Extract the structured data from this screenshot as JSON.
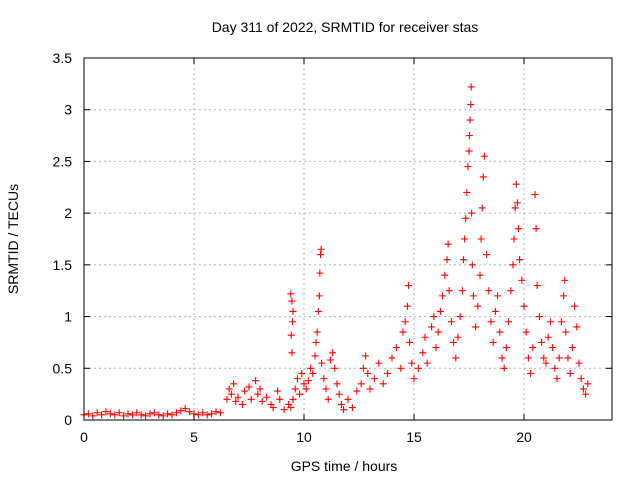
{
  "chart_data": {
    "type": "scatter",
    "title": "Day 311 of 2022, SRMTID for receiver stas",
    "xlabel": "GPS time / hours",
    "ylabel": "SRMTID / TECUs",
    "xlim": [
      0,
      24
    ],
    "ylim": [
      0,
      3.5
    ],
    "x_ticks": [
      0,
      5,
      10,
      15,
      20
    ],
    "x_tick_labels": [
      "0",
      "5",
      "10",
      "15",
      "20"
    ],
    "y_ticks": [
      0,
      0.5,
      1,
      1.5,
      2,
      2.5,
      3,
      3.5
    ],
    "y_tick_labels": [
      "0",
      "0.5",
      "1",
      "1.5",
      "2",
      "2.5",
      "3",
      "3.5"
    ],
    "grid": true,
    "marker": "+",
    "marker_color": "#ff0000",
    "series": [
      {
        "name": "stas",
        "points": [
          [
            0.0,
            0.05
          ],
          [
            0.2,
            0.06
          ],
          [
            0.4,
            0.04
          ],
          [
            0.6,
            0.07
          ],
          [
            0.8,
            0.05
          ],
          [
            1.0,
            0.08
          ],
          [
            1.2,
            0.06
          ],
          [
            1.4,
            0.05
          ],
          [
            1.6,
            0.07
          ],
          [
            1.8,
            0.04
          ],
          [
            2.0,
            0.06
          ],
          [
            2.2,
            0.05
          ],
          [
            2.4,
            0.07
          ],
          [
            2.6,
            0.05
          ],
          [
            2.8,
            0.04
          ],
          [
            3.0,
            0.06
          ],
          [
            3.2,
            0.07
          ],
          [
            3.4,
            0.05
          ],
          [
            3.6,
            0.04
          ],
          [
            3.8,
            0.06
          ],
          [
            4.0,
            0.05
          ],
          [
            4.2,
            0.07
          ],
          [
            4.4,
            0.09
          ],
          [
            4.6,
            0.11
          ],
          [
            4.8,
            0.08
          ],
          [
            5.0,
            0.06
          ],
          [
            5.2,
            0.05
          ],
          [
            5.4,
            0.07
          ],
          [
            5.6,
            0.05
          ],
          [
            5.8,
            0.06
          ],
          [
            6.0,
            0.08
          ],
          [
            6.2,
            0.07
          ],
          [
            6.5,
            0.2
          ],
          [
            6.6,
            0.3
          ],
          [
            6.7,
            0.25
          ],
          [
            6.8,
            0.35
          ],
          [
            6.9,
            0.18
          ],
          [
            7.0,
            0.22
          ],
          [
            7.2,
            0.15
          ],
          [
            7.3,
            0.28
          ],
          [
            7.5,
            0.32
          ],
          [
            7.6,
            0.2
          ],
          [
            7.8,
            0.38
          ],
          [
            7.9,
            0.25
          ],
          [
            8.0,
            0.3
          ],
          [
            8.1,
            0.18
          ],
          [
            8.3,
            0.22
          ],
          [
            8.5,
            0.15
          ],
          [
            8.6,
            0.12
          ],
          [
            8.8,
            0.28
          ],
          [
            8.9,
            0.2
          ],
          [
            9.1,
            0.1
          ],
          [
            9.3,
            0.15
          ],
          [
            9.4,
            0.12
          ],
          [
            9.5,
            0.2
          ],
          [
            9.4,
            1.22
          ],
          [
            9.45,
            1.15
          ],
          [
            9.5,
            1.05
          ],
          [
            9.48,
            0.95
          ],
          [
            9.42,
            0.82
          ],
          [
            9.45,
            0.65
          ],
          [
            9.6,
            0.3
          ],
          [
            9.7,
            0.4
          ],
          [
            9.8,
            0.25
          ],
          [
            9.9,
            0.45
          ],
          [
            10.0,
            0.35
          ],
          [
            10.1,
            0.3
          ],
          [
            10.2,
            0.38
          ],
          [
            10.3,
            0.5
          ],
          [
            10.4,
            0.45
          ],
          [
            10.5,
            0.62
          ],
          [
            10.55,
            0.75
          ],
          [
            10.6,
            0.85
          ],
          [
            10.65,
            1.05
          ],
          [
            10.7,
            1.2
          ],
          [
            10.72,
            1.42
          ],
          [
            10.75,
            1.6
          ],
          [
            10.78,
            1.65
          ],
          [
            10.8,
            0.55
          ],
          [
            10.9,
            0.4
          ],
          [
            11.0,
            0.3
          ],
          [
            11.1,
            0.2
          ],
          [
            11.2,
            0.58
          ],
          [
            11.3,
            0.65
          ],
          [
            11.4,
            0.5
          ],
          [
            11.5,
            0.35
          ],
          [
            11.6,
            0.25
          ],
          [
            11.7,
            0.15
          ],
          [
            11.8,
            0.1
          ],
          [
            12.0,
            0.2
          ],
          [
            12.2,
            0.12
          ],
          [
            12.4,
            0.28
          ],
          [
            12.6,
            0.35
          ],
          [
            12.7,
            0.5
          ],
          [
            12.8,
            0.62
          ],
          [
            12.9,
            0.45
          ],
          [
            13.0,
            0.3
          ],
          [
            13.2,
            0.4
          ],
          [
            13.4,
            0.55
          ],
          [
            13.6,
            0.35
          ],
          [
            13.8,
            0.45
          ],
          [
            14.0,
            0.6
          ],
          [
            14.2,
            0.7
          ],
          [
            14.4,
            0.5
          ],
          [
            14.5,
            0.85
          ],
          [
            14.6,
            0.95
          ],
          [
            14.7,
            1.1
          ],
          [
            14.75,
            1.3
          ],
          [
            14.8,
            0.75
          ],
          [
            14.9,
            0.55
          ],
          [
            15.0,
            0.4
          ],
          [
            15.2,
            0.5
          ],
          [
            15.4,
            0.65
          ],
          [
            15.5,
            0.8
          ],
          [
            15.6,
            0.55
          ],
          [
            15.8,
            0.9
          ],
          [
            15.9,
            1.0
          ],
          [
            16.0,
            0.7
          ],
          [
            16.1,
            0.85
          ],
          [
            16.2,
            1.05
          ],
          [
            16.3,
            1.2
          ],
          [
            16.4,
            1.4
          ],
          [
            16.5,
            1.55
          ],
          [
            16.55,
            1.7
          ],
          [
            16.6,
            1.25
          ],
          [
            16.7,
            0.95
          ],
          [
            16.8,
            0.75
          ],
          [
            16.9,
            0.6
          ],
          [
            17.0,
            0.8
          ],
          [
            17.1,
            1.0
          ],
          [
            17.2,
            1.25
          ],
          [
            17.25,
            1.55
          ],
          [
            17.3,
            1.75
          ],
          [
            17.35,
            1.95
          ],
          [
            17.4,
            2.2
          ],
          [
            17.45,
            2.45
          ],
          [
            17.5,
            2.6
          ],
          [
            17.52,
            2.75
          ],
          [
            17.55,
            2.9
          ],
          [
            17.58,
            3.05
          ],
          [
            17.6,
            3.22
          ],
          [
            17.62,
            2.0
          ],
          [
            17.65,
            1.5
          ],
          [
            17.7,
            1.2
          ],
          [
            17.8,
            0.9
          ],
          [
            17.9,
            1.1
          ],
          [
            18.0,
            1.4
          ],
          [
            18.05,
            1.75
          ],
          [
            18.1,
            2.05
          ],
          [
            18.15,
            2.35
          ],
          [
            18.2,
            2.55
          ],
          [
            18.3,
            1.6
          ],
          [
            18.4,
            1.25
          ],
          [
            18.5,
            0.95
          ],
          [
            18.6,
            0.75
          ],
          [
            18.7,
            1.05
          ],
          [
            18.8,
            1.2
          ],
          [
            18.9,
            0.85
          ],
          [
            19.0,
            0.6
          ],
          [
            19.1,
            0.5
          ],
          [
            19.2,
            0.7
          ],
          [
            19.3,
            0.95
          ],
          [
            19.4,
            1.25
          ],
          [
            19.5,
            1.5
          ],
          [
            19.55,
            1.75
          ],
          [
            19.6,
            2.05
          ],
          [
            19.65,
            2.28
          ],
          [
            19.7,
            2.1
          ],
          [
            19.75,
            1.85
          ],
          [
            19.8,
            1.55
          ],
          [
            19.9,
            1.35
          ],
          [
            20.0,
            1.1
          ],
          [
            20.1,
            0.85
          ],
          [
            20.2,
            0.6
          ],
          [
            20.3,
            0.45
          ],
          [
            20.4,
            0.7
          ],
          [
            20.5,
            2.18
          ],
          [
            20.55,
            1.85
          ],
          [
            20.6,
            1.3
          ],
          [
            20.7,
            1.0
          ],
          [
            20.8,
            0.75
          ],
          [
            20.9,
            0.6
          ],
          [
            21.0,
            0.55
          ],
          [
            21.1,
            0.8
          ],
          [
            21.2,
            0.95
          ],
          [
            21.3,
            0.7
          ],
          [
            21.4,
            0.5
          ],
          [
            21.5,
            0.4
          ],
          [
            21.6,
            0.6
          ],
          [
            21.7,
            0.95
          ],
          [
            21.8,
            1.2
          ],
          [
            21.85,
            1.35
          ],
          [
            21.9,
            0.85
          ],
          [
            22.0,
            0.6
          ],
          [
            22.1,
            0.45
          ],
          [
            22.2,
            0.7
          ],
          [
            22.3,
            1.1
          ],
          [
            22.4,
            0.9
          ],
          [
            22.5,
            0.55
          ],
          [
            22.6,
            0.4
          ],
          [
            22.7,
            0.3
          ],
          [
            22.8,
            0.25
          ],
          [
            22.9,
            0.35
          ]
        ]
      }
    ]
  }
}
